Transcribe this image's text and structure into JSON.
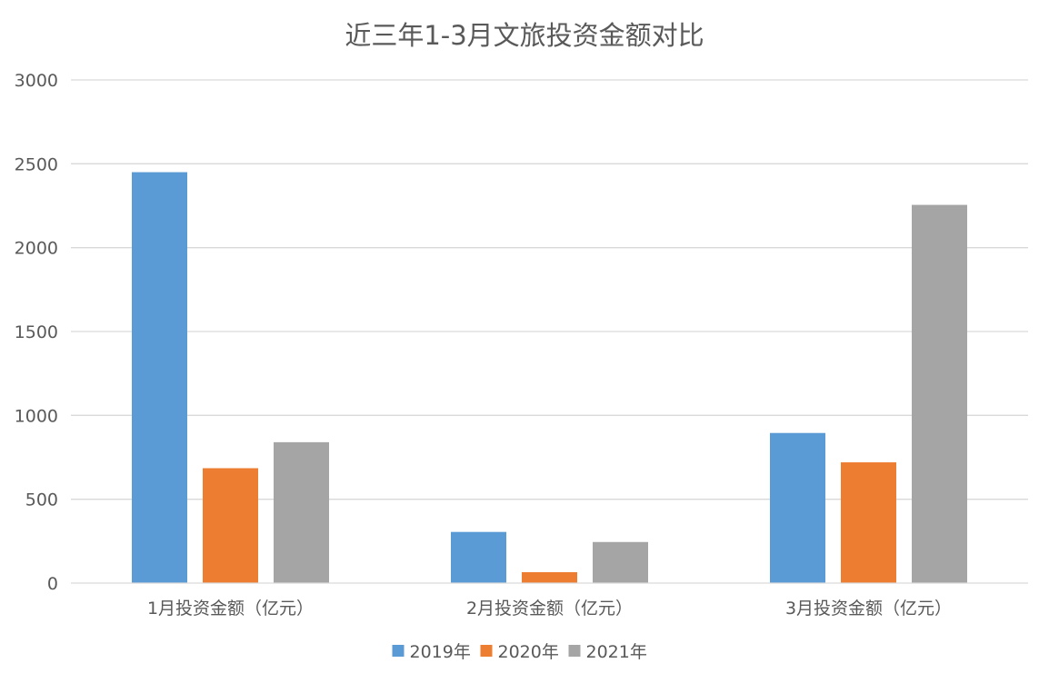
{
  "chart_data": {
    "type": "bar",
    "title": "近三年1-3月文旅投资金额对比",
    "categories": [
      "1月投资金额（亿元）",
      "2月投资金额（亿元）",
      "3月投资金额（亿元）"
    ],
    "series": [
      {
        "name": "2019年",
        "color": "#5b9bd5",
        "values": [
          2450,
          305,
          895
        ]
      },
      {
        "name": "2020年",
        "color": "#ed7d31",
        "values": [
          685,
          65,
          720
        ]
      },
      {
        "name": "2021年",
        "color": "#a5a5a5",
        "values": [
          840,
          245,
          2255
        ]
      }
    ],
    "ylim": [
      0,
      3000
    ],
    "yticks": [
      0,
      500,
      1000,
      1500,
      2000,
      2500,
      3000
    ],
    "grid": true,
    "legend_position": "bottom"
  }
}
